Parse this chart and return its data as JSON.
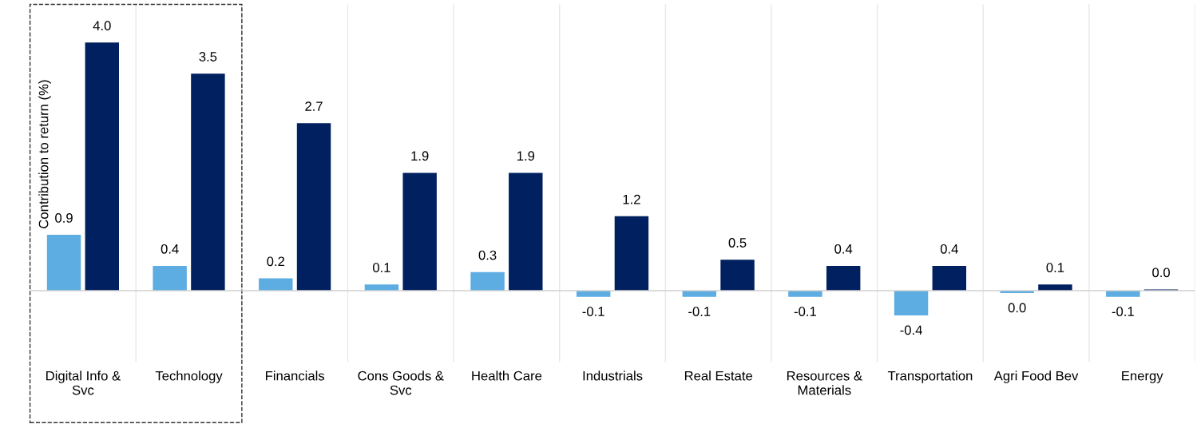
{
  "chart_data": {
    "type": "bar",
    "ylabel": "Contribution to return (%)",
    "categories": [
      "Digital Info & Svc",
      "Technology",
      "Financials",
      "Cons Goods & Svc",
      "Health Care",
      "Industrials",
      "Real Estate",
      "Resources & Materials",
      "Transportation",
      "Agri Food Bev",
      "Energy"
    ],
    "series": [
      {
        "color": "#5dade2",
        "values": [
          0.9,
          0.4,
          0.2,
          0.1,
          0.3,
          -0.1,
          -0.1,
          -0.1,
          -0.4,
          -0.04,
          -0.1
        ],
        "value_labels": [
          "0.9",
          "0.4",
          "0.2",
          "0.1",
          "0.3",
          "-0.1",
          "-0.1",
          "-0.1",
          "-0.4",
          "0.0",
          "-0.1"
        ]
      },
      {
        "color": "#002060",
        "values": [
          4.0,
          3.5,
          2.7,
          1.9,
          1.9,
          1.2,
          0.5,
          0.4,
          0.4,
          0.1,
          0.02
        ],
        "value_labels": [
          "4.0",
          "3.5",
          "2.7",
          "1.9",
          "1.9",
          "1.2",
          "0.5",
          "0.4",
          "0.4",
          "0.1",
          "0.0"
        ]
      }
    ],
    "grid": "x",
    "legend": false
  }
}
